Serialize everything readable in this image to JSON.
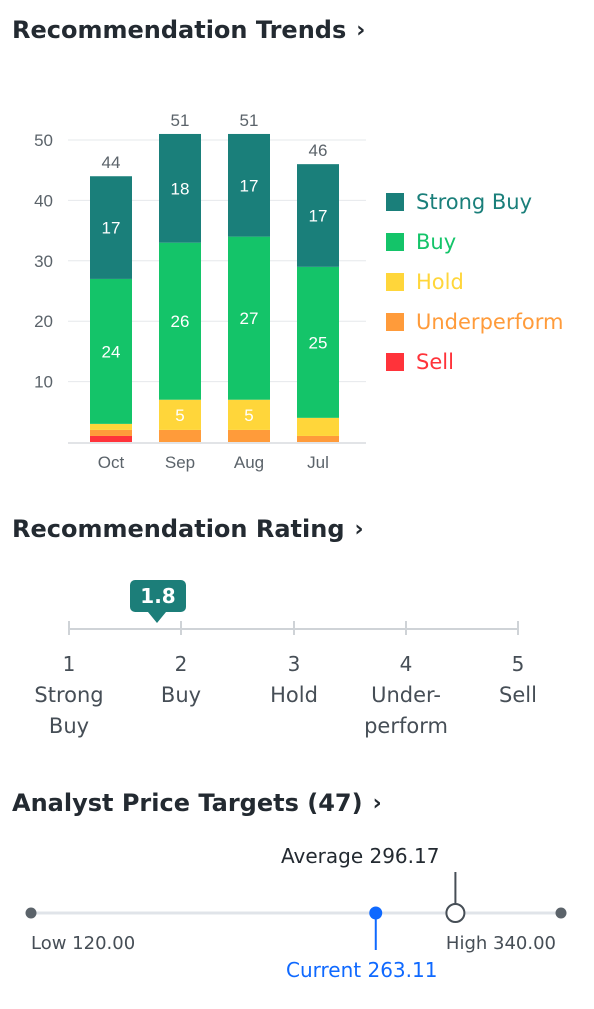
{
  "recommendation_trends": {
    "title": "Recommendation Trends",
    "legend": [
      {
        "label": "Strong Buy",
        "color": "#1a7f7a"
      },
      {
        "label": "Buy",
        "color": "#14c469"
      },
      {
        "label": "Hold",
        "color": "#ffd63a"
      },
      {
        "label": "Underperform",
        "color": "#ff9b3a"
      },
      {
        "label": "Sell",
        "color": "#ff333a"
      }
    ]
  },
  "chart_data": {
    "type": "bar",
    "stacked": true,
    "categories": [
      "Oct",
      "Sep",
      "Aug",
      "Jul"
    ],
    "yticks": [
      10,
      20,
      30,
      40,
      50
    ],
    "ylim": [
      0,
      51
    ],
    "grid": true,
    "legend_position": "right",
    "totals": [
      44,
      51,
      51,
      46
    ],
    "series": [
      {
        "name": "Sell",
        "color": "#ff333a",
        "values": [
          1,
          0,
          0,
          0
        ]
      },
      {
        "name": "Underperform",
        "color": "#ff9b3a",
        "values": [
          1,
          2,
          2,
          1
        ]
      },
      {
        "name": "Hold",
        "color": "#ffd63a",
        "values": [
          1,
          5,
          5,
          3
        ]
      },
      {
        "name": "Buy",
        "color": "#14c469",
        "values": [
          24,
          26,
          27,
          25
        ]
      },
      {
        "name": "Strong Buy",
        "color": "#1a7f7a",
        "values": [
          17,
          18,
          17,
          17
        ]
      }
    ]
  },
  "recommendation_rating": {
    "title": "Recommendation Rating",
    "value": "1.8",
    "scale": [
      {
        "num": "1",
        "label": [
          "Strong",
          "Buy"
        ]
      },
      {
        "num": "2",
        "label": [
          "Buy"
        ]
      },
      {
        "num": "3",
        "label": [
          "Hold"
        ]
      },
      {
        "num": "4",
        "label": [
          "Under-",
          "perform"
        ]
      },
      {
        "num": "5",
        "label": [
          "Sell"
        ]
      }
    ]
  },
  "analyst_price_targets": {
    "title": "Analyst Price Targets (47)",
    "low": "Low 120.00",
    "high": "High 340.00",
    "average": "Average 296.17",
    "current": "Current 263.11",
    "values": {
      "low": 120.0,
      "high": 340.0,
      "average": 296.17,
      "current": 263.11
    },
    "current_color": "#0f69ff"
  }
}
